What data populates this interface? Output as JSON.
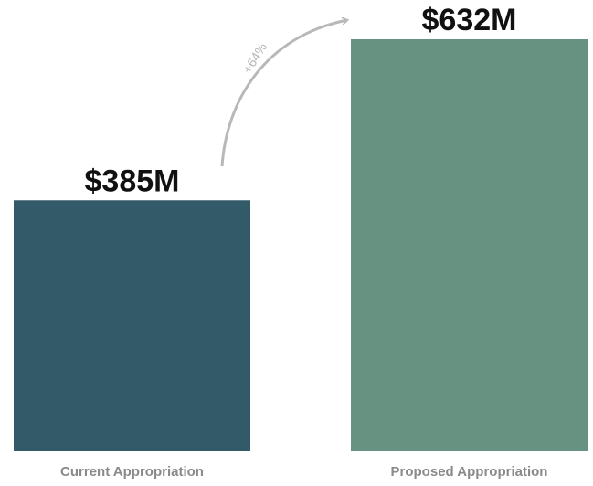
{
  "chart_data": {
    "type": "bar",
    "categories": [
      "Current Appropriation",
      "Proposed Appropriation"
    ],
    "values": [
      385,
      632
    ],
    "value_labels": [
      "$385M",
      "$632M"
    ],
    "colors": [
      "#335a68",
      "#679282"
    ],
    "annotation": "+64%"
  }
}
